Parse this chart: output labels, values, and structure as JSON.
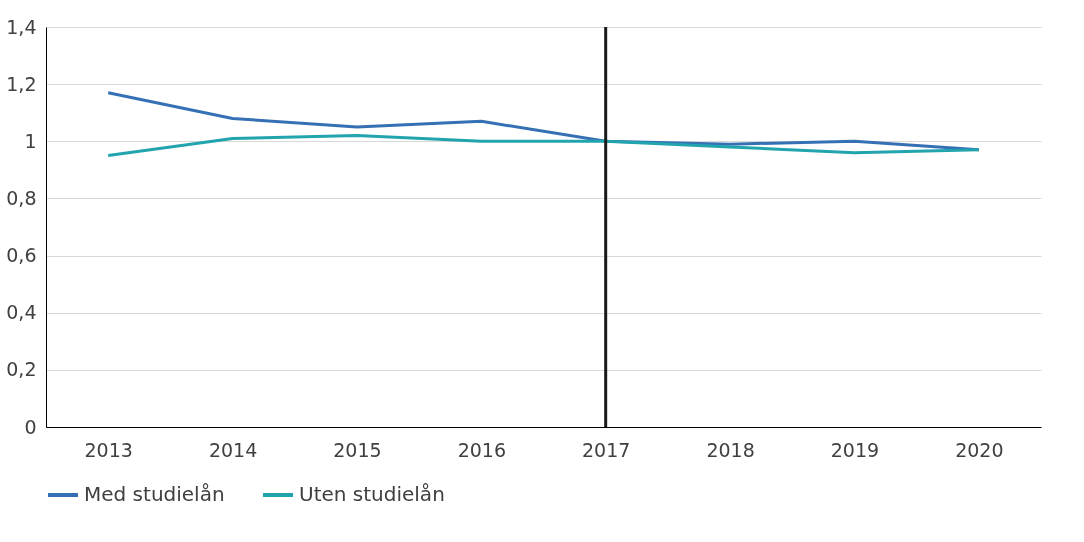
{
  "chart_data": {
    "type": "line",
    "categories": [
      "2013",
      "2014",
      "2015",
      "2016",
      "2017",
      "2018",
      "2019",
      "2020"
    ],
    "series": [
      {
        "name": "Med studielån",
        "color": "#3570b5",
        "values": [
          1.17,
          1.08,
          1.05,
          1.07,
          1.0,
          0.99,
          1.0,
          0.97
        ]
      },
      {
        "name": "Uten studielån",
        "color": "#22a4ae",
        "values": [
          0.95,
          1.01,
          1.02,
          1.0,
          1.0,
          0.98,
          0.96,
          0.97
        ]
      }
    ],
    "ylim": [
      0,
      1.4
    ],
    "yticks": [
      0,
      {
        "value": 0.2,
        "label": "0,2"
      },
      {
        "value": 0.4,
        "label": "0,4"
      },
      {
        "value": 0.6,
        "label": "0,6"
      },
      {
        "value": 0.8,
        "label": "0,8"
      },
      1,
      {
        "value": 1.2,
        "label": "1,2"
      },
      {
        "value": 1.4,
        "label": "1,4"
      }
    ],
    "grid": "y",
    "legend": "bottom",
    "marker": "none",
    "line_style": "solid",
    "ref_lines": [
      {
        "axis": "x",
        "value": "2017",
        "color": "#1a1a1a"
      }
    ]
  }
}
